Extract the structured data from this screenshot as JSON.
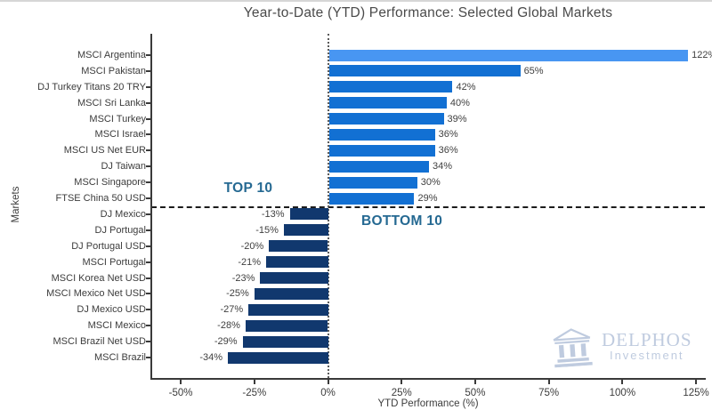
{
  "title": "Year-to-Date (YTD) Performance: Selected Global Markets",
  "axes": {
    "xlabel": "YTD Performance (%)",
    "ylabel": "Markets"
  },
  "annotations": {
    "top_group": "TOP 10",
    "bottom_group": "BOTTOM 10"
  },
  "watermark": {
    "icon": "temple-icon",
    "name": "DELPHOS",
    "subtitle": "Investment"
  },
  "colors": {
    "highlight_bar": "#4896f2",
    "positive_bar": "#1270d3",
    "negative_bar": "#11386e",
    "annotation_text": "#256992",
    "watermark_text": "#b5c3da",
    "axis_text": "#3c3c3c"
  },
  "chart_data": {
    "type": "bar",
    "orientation": "horizontal",
    "title": "Year-to-Date (YTD) Performance: Selected Global Markets",
    "xlabel": "YTD Performance (%)",
    "ylabel": "Markets",
    "xlim": [
      -60,
      128
    ],
    "grid": false,
    "highlight_index": 0,
    "categories": [
      "MSCI Argentina",
      "MSCI Pakistan",
      "DJ Turkey Titans 20 TRY",
      "MSCI Sri Lanka",
      "MSCI Turkey",
      "MSCI Israel",
      "MSCI US Net EUR",
      "DJ Taiwan",
      "MSCI Singapore",
      "FTSE China 50 USD",
      "DJ Mexico",
      "DJ Portugal",
      "DJ Portugal USD",
      "MSCI Portugal",
      "MSCI Korea Net USD",
      "MSCI Mexico Net USD",
      "DJ Mexico USD",
      "MSCI Mexico",
      "MSCI Brazil Net USD",
      "MSCI Brazil"
    ],
    "values": [
      122,
      65,
      42,
      40,
      39,
      36,
      36,
      34,
      30,
      29,
      -13,
      -15,
      -20,
      -21,
      -23,
      -25,
      -27,
      -28,
      -29,
      -34
    ],
    "value_labels": [
      "122%",
      "65%",
      "42%",
      "40%",
      "39%",
      "36%",
      "36%",
      "34%",
      "30%",
      "29%",
      "-13%",
      "-15%",
      "-20%",
      "-21%",
      "-23%",
      "-25%",
      "-27%",
      "-28%",
      "-29%",
      "-34%"
    ],
    "xticks": [
      {
        "value": -50,
        "label": "-50%"
      },
      {
        "value": -25,
        "label": "-25%"
      },
      {
        "value": 0,
        "label": "0%"
      },
      {
        "value": 25,
        "label": "25%"
      },
      {
        "value": 50,
        "label": "50%"
      },
      {
        "value": 75,
        "label": "75%"
      },
      {
        "value": 100,
        "label": "100%"
      },
      {
        "value": 125,
        "label": "125%"
      }
    ]
  }
}
